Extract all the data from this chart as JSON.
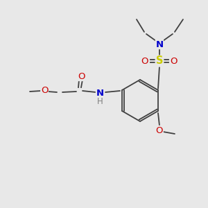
{
  "bg_color": "#e8e8e8",
  "atom_colors": {
    "C": "#404040",
    "N": "#0000cc",
    "O": "#cc0000",
    "S": "#cccc00",
    "H": "#808080"
  },
  "bond_color": "#404040",
  "font_size": 8.5,
  "fig_size": [
    3.0,
    3.0
  ],
  "dpi": 100
}
